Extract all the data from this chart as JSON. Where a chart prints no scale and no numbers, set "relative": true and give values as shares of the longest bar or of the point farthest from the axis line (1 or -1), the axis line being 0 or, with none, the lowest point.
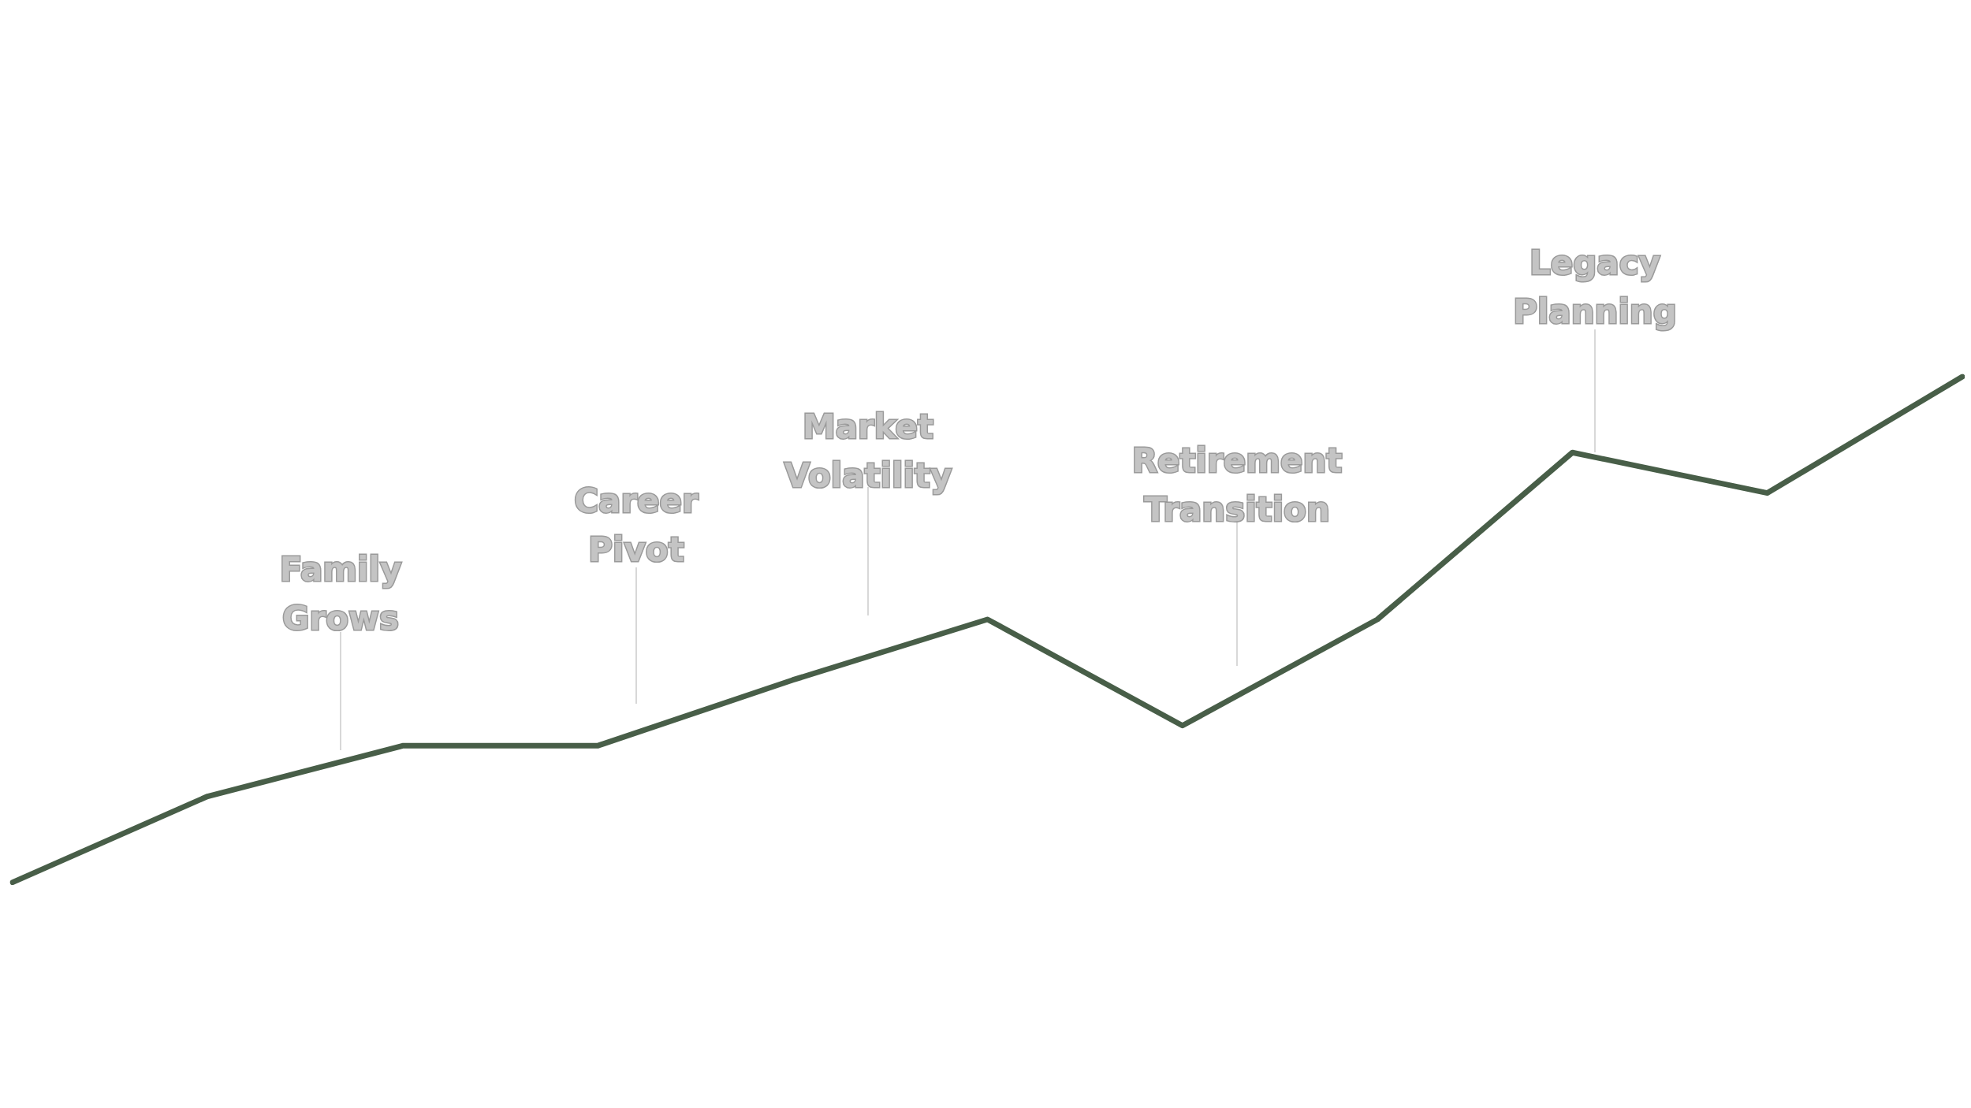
{
  "chart_data": {
    "type": "line",
    "relative": true,
    "categories": [
      null,
      null,
      null,
      null,
      null,
      null,
      null,
      null,
      null,
      null,
      null
    ],
    "series": [
      {
        "color": "#485e48",
        "values": [
          0,
          0.17,
          0.27,
          0.27,
          0.4,
          0.52,
          0.31,
          0.52,
          0.85,
          0.77,
          1
        ]
      }
    ],
    "annotations": [
      "Family Grows",
      "Career Pivot",
      "Market Volatility",
      "Retirement Transition",
      "Legacy Planning"
    ],
    "grid": false,
    "legend": false,
    "marker": "none",
    "line_style": "solid"
  }
}
